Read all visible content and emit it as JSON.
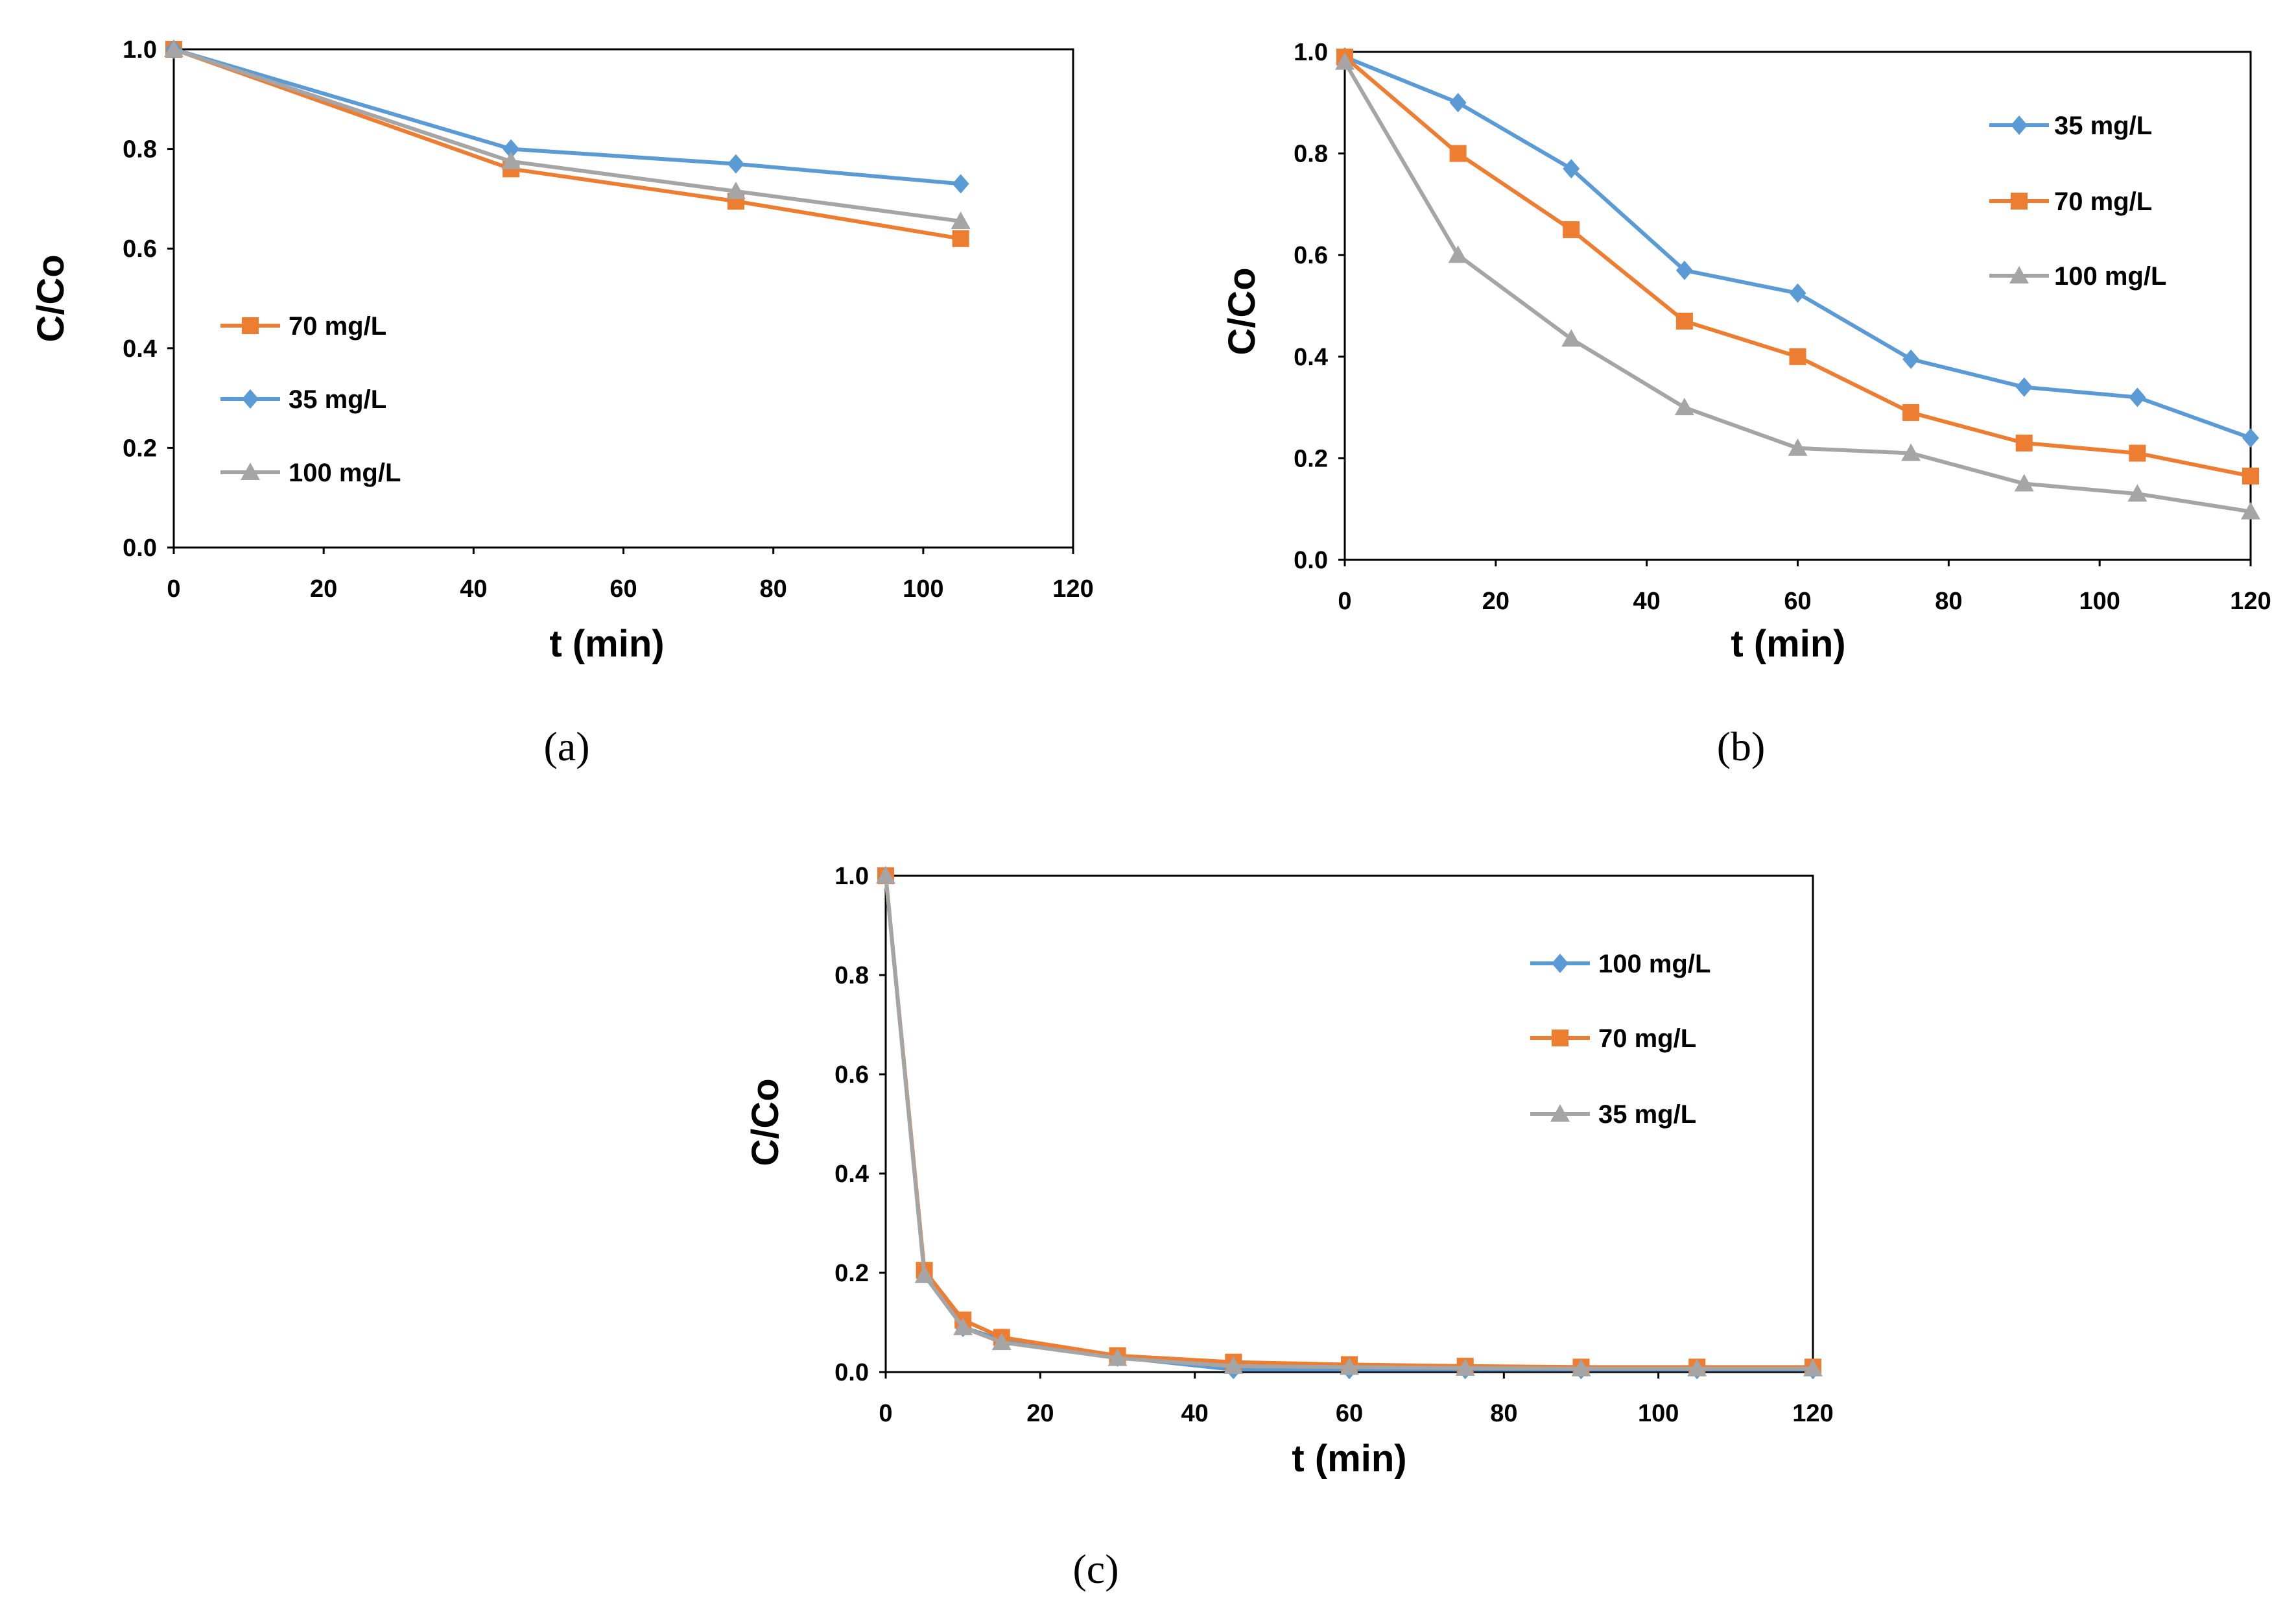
{
  "figure": {
    "colors": {
      "blue": "#5b9bd5",
      "orange": "#ed7d31",
      "gray": "#a5a5a5"
    }
  },
  "chart_data": [
    {
      "type": "line",
      "panel": "a",
      "panel_label": "(a)",
      "xlabel": "t (min)",
      "ylabel": "C/Co",
      "xlim": [
        0,
        120
      ],
      "ylim": [
        0,
        1.0
      ],
      "xticks": [
        "0",
        "20",
        "40",
        "60",
        "80",
        "100",
        "120"
      ],
      "yticks": [
        "0.0",
        "0.2",
        "0.4",
        "0.6",
        "0.8",
        "1.0"
      ],
      "grid": false,
      "legend_position": "left-center",
      "series": [
        {
          "name": "70 mg/L",
          "color": "#ed7d31",
          "marker": "square",
          "x": [
            0,
            45,
            75,
            105
          ],
          "y": [
            1.0,
            0.76,
            0.695,
            0.62
          ]
        },
        {
          "name": "35 mg/L",
          "color": "#5b9bd5",
          "marker": "diamond",
          "x": [
            0,
            45,
            75,
            105
          ],
          "y": [
            1.0,
            0.8,
            0.77,
            0.73
          ]
        },
        {
          "name": "100 mg/L",
          "color": "#a5a5a5",
          "marker": "triangle",
          "x": [
            0,
            45,
            75,
            105
          ],
          "y": [
            1.0,
            0.775,
            0.715,
            0.655
          ]
        }
      ]
    },
    {
      "type": "line",
      "panel": "b",
      "panel_label": "(b)",
      "xlabel": "t (min)",
      "ylabel": "C/Co",
      "xlim": [
        0,
        120
      ],
      "ylim": [
        0,
        1.0
      ],
      "xticks": [
        "0",
        "20",
        "40",
        "60",
        "80",
        "100",
        "120"
      ],
      "yticks": [
        "0.0",
        "0.2",
        "0.4",
        "0.6",
        "0.8",
        "1.0"
      ],
      "grid": false,
      "legend_position": "top-right",
      "series": [
        {
          "name": "35 mg/L",
          "color": "#5b9bd5",
          "marker": "diamond",
          "x": [
            0,
            15,
            30,
            45,
            60,
            75,
            90,
            105,
            120
          ],
          "y": [
            0.99,
            0.9,
            0.77,
            0.57,
            0.525,
            0.395,
            0.34,
            0.32,
            0.24
          ]
        },
        {
          "name": "70 mg/L",
          "color": "#ed7d31",
          "marker": "square",
          "x": [
            0,
            15,
            30,
            45,
            60,
            75,
            90,
            105,
            120
          ],
          "y": [
            0.99,
            0.8,
            0.65,
            0.47,
            0.4,
            0.29,
            0.23,
            0.21,
            0.165
          ]
        },
        {
          "name": "100 mg/L",
          "color": "#a5a5a5",
          "marker": "triangle",
          "x": [
            0,
            15,
            30,
            45,
            60,
            75,
            90,
            105,
            120
          ],
          "y": [
            0.98,
            0.6,
            0.435,
            0.3,
            0.22,
            0.21,
            0.15,
            0.13,
            0.095
          ]
        }
      ]
    },
    {
      "type": "line",
      "panel": "c",
      "panel_label": "(c)",
      "xlabel": "t (min)",
      "ylabel": "C/Co",
      "xlim": [
        0,
        120
      ],
      "ylim": [
        0,
        1.0
      ],
      "xticks": [
        "0",
        "20",
        "40",
        "60",
        "80",
        "100",
        "120"
      ],
      "yticks": [
        "0.0",
        "0.2",
        "0.4",
        "0.6",
        "0.8",
        "1.0"
      ],
      "grid": false,
      "legend_position": "top-right",
      "series": [
        {
          "name": "100 mg/L",
          "color": "#5b9bd5",
          "marker": "diamond",
          "x": [
            0,
            5,
            10,
            15,
            30,
            45,
            60,
            75,
            90,
            105,
            120
          ],
          "y": [
            1.0,
            0.2,
            0.09,
            0.065,
            0.03,
            0.005,
            0.005,
            0.005,
            0.005,
            0.005,
            0.005
          ]
        },
        {
          "name": "70 mg/L",
          "color": "#ed7d31",
          "marker": "square",
          "x": [
            0,
            5,
            10,
            15,
            30,
            45,
            60,
            75,
            90,
            105,
            120
          ],
          "y": [
            1.0,
            0.205,
            0.105,
            0.07,
            0.033,
            0.02,
            0.015,
            0.012,
            0.01,
            0.01,
            0.01
          ]
        },
        {
          "name": "35 mg/L",
          "color": "#a5a5a5",
          "marker": "triangle",
          "x": [
            0,
            5,
            10,
            15,
            30,
            45,
            60,
            75,
            90,
            105,
            120
          ],
          "y": [
            1.0,
            0.195,
            0.09,
            0.06,
            0.028,
            0.012,
            0.01,
            0.008,
            0.007,
            0.007,
            0.007
          ]
        }
      ]
    }
  ]
}
